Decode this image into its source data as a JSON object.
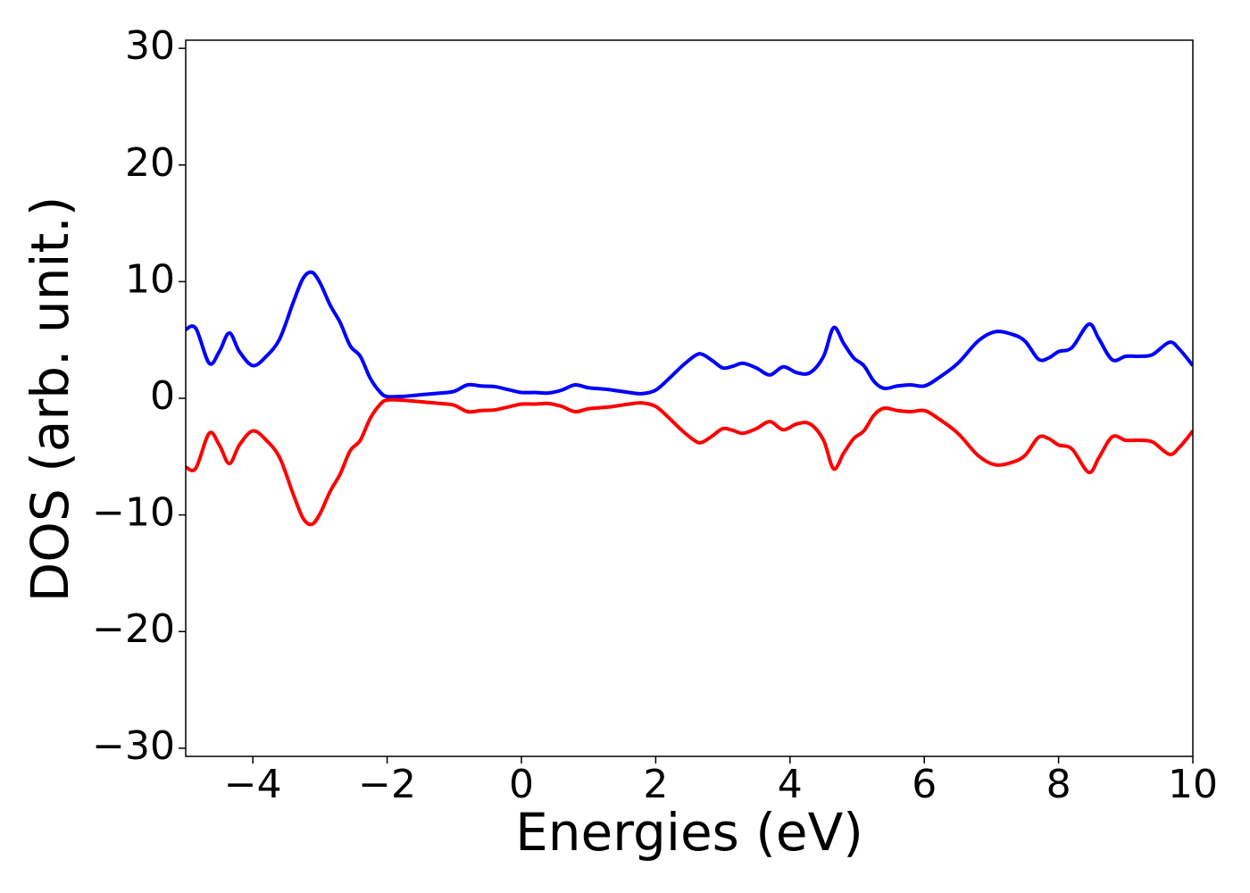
{
  "chart_data": {
    "type": "line",
    "xlabel": "Energies (eV)",
    "ylabel": "DOS (arb. unit.)",
    "xlim": [
      -5,
      10
    ],
    "ylim": [
      -30.7,
      30.7
    ],
    "xticks": [
      {
        "value": -4,
        "label": "−4"
      },
      {
        "value": -2,
        "label": "−2"
      },
      0,
      2,
      4,
      6,
      8,
      10
    ],
    "yticks": [
      {
        "value": -30,
        "label": "−30"
      },
      {
        "value": -20,
        "label": "−20"
      },
      {
        "value": -10,
        "label": "−10"
      },
      0,
      10,
      20,
      30
    ],
    "x": [
      -5,
      -4.85,
      -4.65,
      -4.5,
      -4.35,
      -4.2,
      -4.0,
      -3.8,
      -3.6,
      -3.4,
      -3.25,
      -3.12,
      -3.0,
      -2.85,
      -2.7,
      -2.55,
      -2.4,
      -2.25,
      -2.1,
      -2.0,
      -1.8,
      -1.5,
      -1.2,
      -1.0,
      -0.8,
      -0.6,
      -0.4,
      -0.2,
      0,
      0.2,
      0.4,
      0.6,
      0.8,
      1.0,
      1.3,
      1.6,
      1.8,
      2.0,
      2.2,
      2.4,
      2.6,
      2.7,
      2.85,
      3.0,
      3.15,
      3.3,
      3.5,
      3.7,
      3.9,
      4.1,
      4.3,
      4.5,
      4.65,
      4.8,
      4.95,
      5.1,
      5.25,
      5.4,
      5.6,
      5.8,
      6.0,
      6.2,
      6.5,
      6.8,
      7.05,
      7.3,
      7.5,
      7.7,
      7.85,
      8.0,
      8.2,
      8.45,
      8.6,
      8.8,
      9.0,
      9.2,
      9.4,
      9.65,
      9.8,
      10
    ],
    "series": [
      {
        "color": "#0000ff",
        "values": [
          5.9,
          6.0,
          3.0,
          4.0,
          5.6,
          4.0,
          2.8,
          3.6,
          5.1,
          8.2,
          10.3,
          10.8,
          9.9,
          8.0,
          6.5,
          4.5,
          3.6,
          1.7,
          0.5,
          0.15,
          0.15,
          0.3,
          0.45,
          0.6,
          1.15,
          1.05,
          1.0,
          0.75,
          0.5,
          0.5,
          0.45,
          0.7,
          1.15,
          0.9,
          0.75,
          0.5,
          0.4,
          0.7,
          1.7,
          2.8,
          3.7,
          3.75,
          3.2,
          2.6,
          2.75,
          3.0,
          2.6,
          2.0,
          2.7,
          2.2,
          2.2,
          3.6,
          6.05,
          4.7,
          3.45,
          2.8,
          1.45,
          0.85,
          1.05,
          1.15,
          1.05,
          1.7,
          3.0,
          4.9,
          5.7,
          5.5,
          4.9,
          3.35,
          3.45,
          4.0,
          4.35,
          6.35,
          5.1,
          3.3,
          3.6,
          3.6,
          3.75,
          4.8,
          4.2,
          2.8
        ]
      },
      {
        "color": "#ff0000",
        "values": [
          -5.9,
          -6.0,
          -3.0,
          -4.0,
          -5.6,
          -4.0,
          -2.8,
          -3.6,
          -5.1,
          -8.2,
          -10.3,
          -10.8,
          -9.9,
          -8.0,
          -6.5,
          -4.5,
          -3.6,
          -1.7,
          -0.5,
          -0.15,
          -0.15,
          -0.3,
          -0.45,
          -0.6,
          -1.15,
          -1.05,
          -1.0,
          -0.75,
          -0.5,
          -0.5,
          -0.45,
          -0.7,
          -1.15,
          -0.9,
          -0.75,
          -0.5,
          -0.4,
          -0.7,
          -1.7,
          -2.8,
          -3.7,
          -3.75,
          -3.2,
          -2.6,
          -2.75,
          -3.0,
          -2.6,
          -2.0,
          -2.7,
          -2.2,
          -2.2,
          -3.6,
          -6.05,
          -4.7,
          -3.45,
          -2.8,
          -1.45,
          -0.85,
          -1.05,
          -1.15,
          -1.05,
          -1.7,
          -3.0,
          -4.9,
          -5.7,
          -5.5,
          -4.9,
          -3.35,
          -3.45,
          -4.0,
          -4.35,
          -6.35,
          -5.1,
          -3.3,
          -3.6,
          -3.6,
          -3.75,
          -4.8,
          -4.2,
          -2.8
        ]
      }
    ]
  }
}
